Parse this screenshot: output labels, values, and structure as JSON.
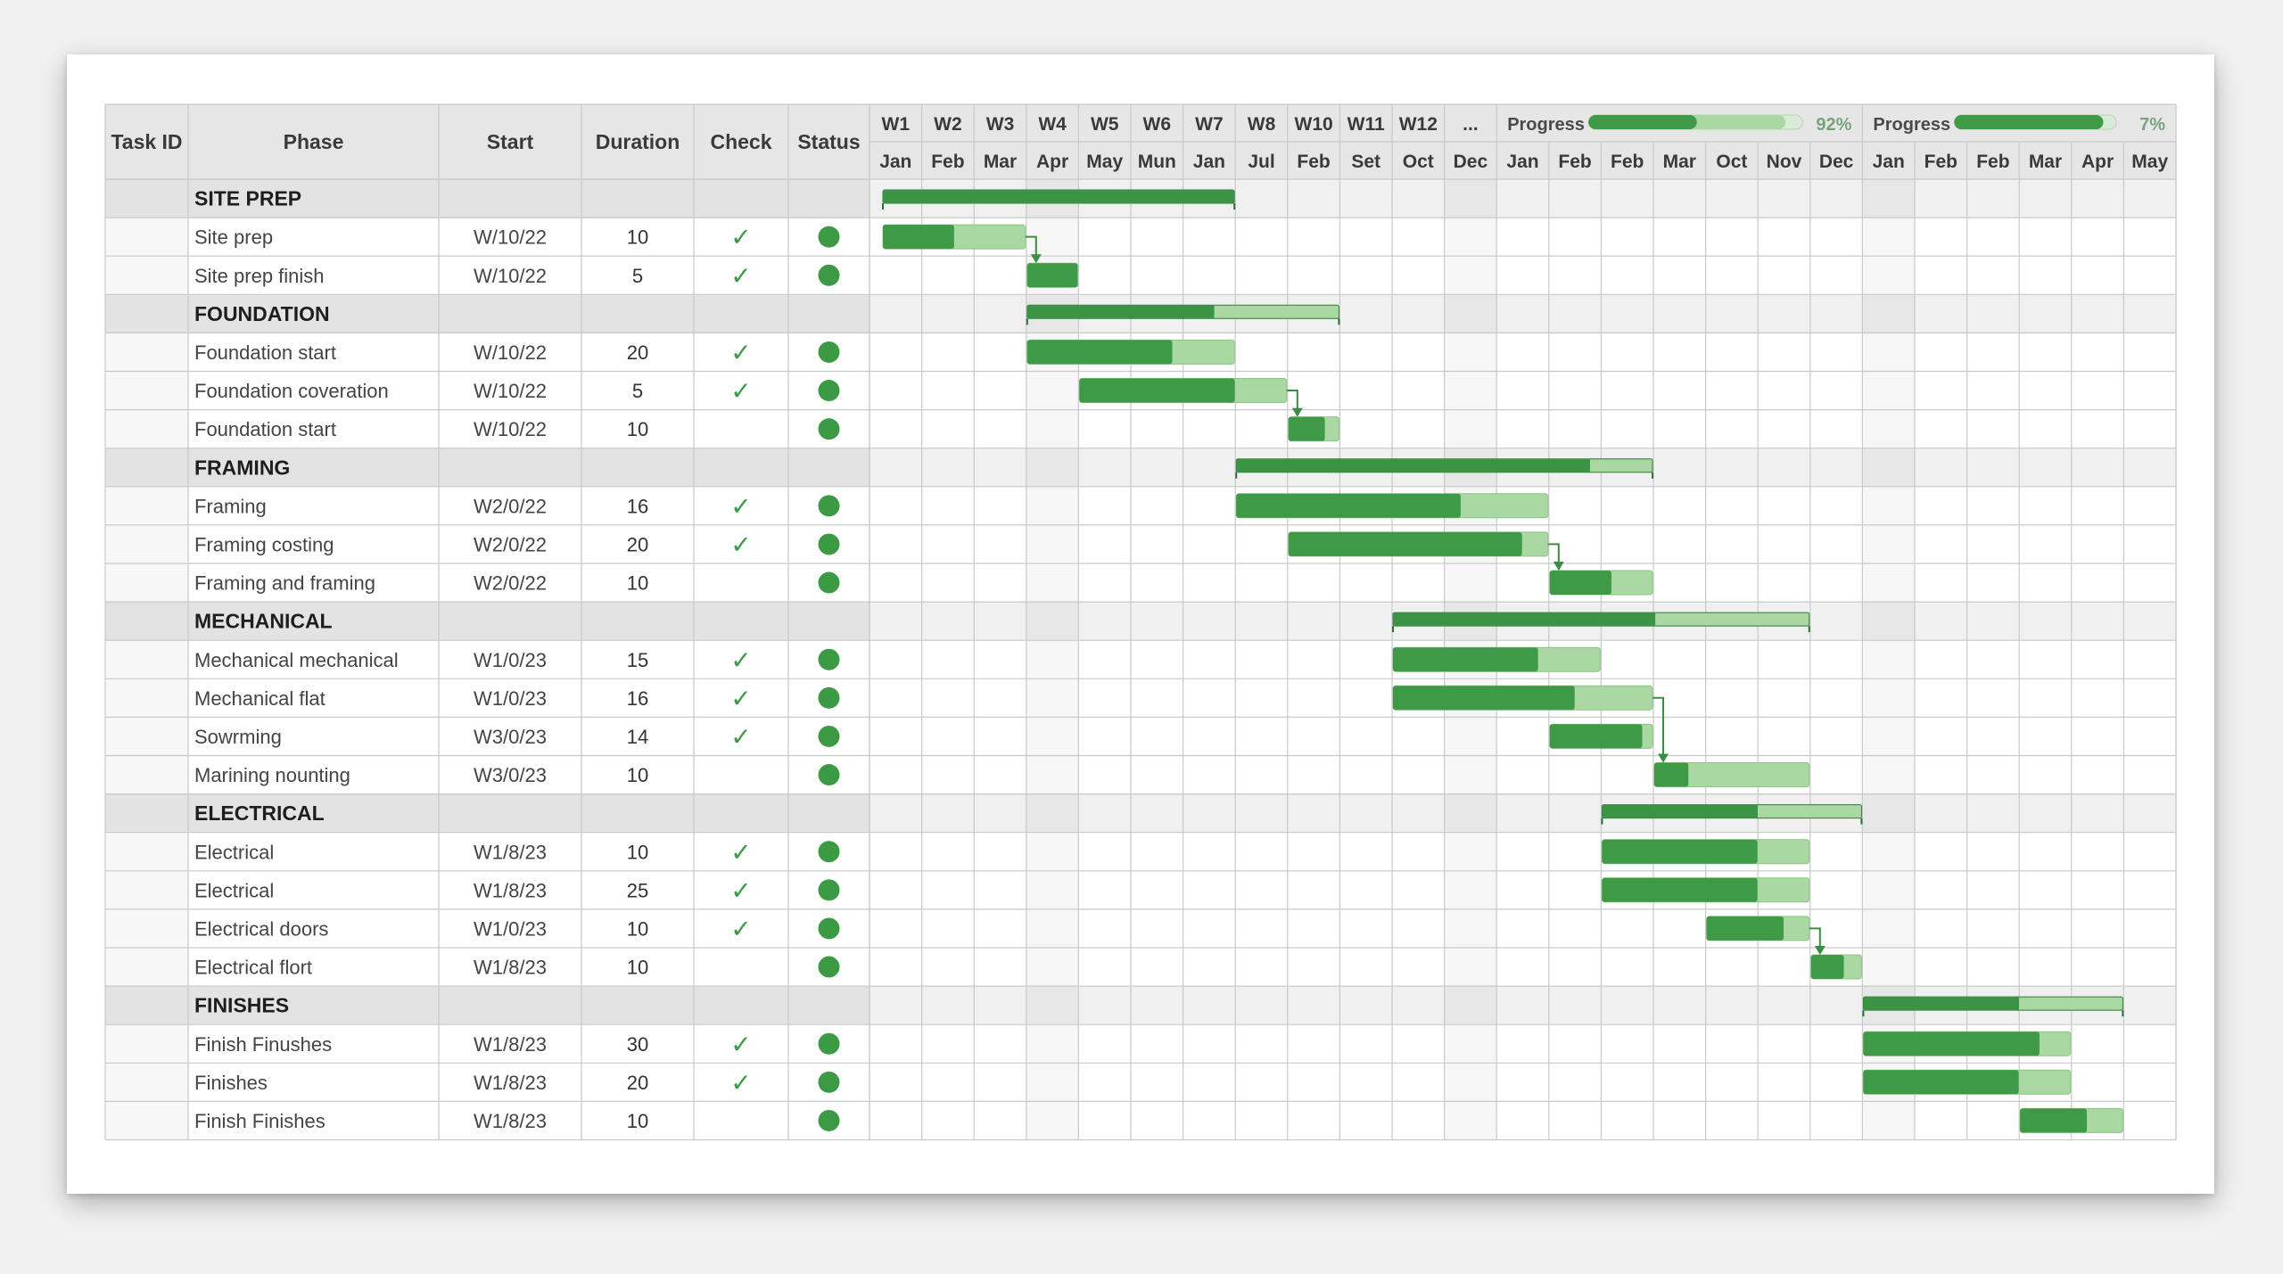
{
  "columns": {
    "task_id": "Task ID",
    "phase": "Phase",
    "start": "Start",
    "duration": "Duration",
    "check": "Check",
    "status": "Status"
  },
  "weeks": [
    "W1",
    "W2",
    "W3",
    "W4",
    "W5",
    "W6",
    "W7",
    "W8",
    "W10",
    "W11",
    "W12",
    "..."
  ],
  "months": [
    "Jan",
    "Feb",
    "Mar",
    "Apr",
    "May",
    "Mun",
    "Jan",
    "Jul",
    "Feb",
    "Set",
    "Oct",
    "Dec",
    "Jan",
    "Feb",
    "Feb",
    "Mar",
    "Oct",
    "Nov",
    "Dec",
    "Jan",
    "Feb",
    "Feb",
    "Mar",
    "Apr",
    "May"
  ],
  "progress": [
    {
      "label": "Progress",
      "value": 0.92,
      "text": "92%"
    },
    {
      "label": "Progress",
      "value": 0.07,
      "text": "7%"
    }
  ],
  "colors": {
    "bar_dark": "#3f9a48",
    "bar_light": "#a9d8a2",
    "summary_dark": "#3b9444",
    "phase_row": "#e3e3e3",
    "status_dot": "#3c9a45",
    "check": "#3c9a45"
  },
  "icons": {
    "check": "✓",
    "status": "status-dot-icon"
  },
  "rows": [
    {
      "type": "phase",
      "name": "SITE PREP",
      "bar": {
        "start": 0,
        "end": 7,
        "done": 1.0
      }
    },
    {
      "type": "task",
      "name": "Site prep",
      "start": "W/10/22",
      "duration": "10",
      "check": true,
      "bar": {
        "start": 0,
        "end": 3,
        "done": 0.5
      }
    },
    {
      "type": "task",
      "name": "Site prep finish",
      "start": "W/10/22",
      "duration": "5",
      "check": true,
      "bar": {
        "start": 3,
        "end": 4,
        "done": 1.0
      }
    },
    {
      "type": "phase",
      "name": "FOUNDATION",
      "bar": {
        "start": 3,
        "end": 9,
        "done": 0.6
      }
    },
    {
      "type": "task",
      "name": "Foundation start",
      "start": "W/10/22",
      "duration": "20",
      "check": true,
      "bar": {
        "start": 3,
        "end": 7,
        "done": 0.7
      }
    },
    {
      "type": "task",
      "name": "Foundation coveration",
      "start": "W/10/22",
      "duration": "5",
      "check": true,
      "bar": {
        "start": 4,
        "end": 8,
        "done": 0.75
      }
    },
    {
      "type": "task",
      "name": "Foundation start",
      "start": "W/10/22",
      "duration": "10",
      "check": false,
      "bar": {
        "start": 8,
        "end": 9,
        "done": 0.72
      }
    },
    {
      "type": "phase",
      "name": "FRAMING",
      "bar": {
        "start": 7,
        "end": 15,
        "done": 0.85
      }
    },
    {
      "type": "task",
      "name": "Framing",
      "start": "W2/0/22",
      "duration": "16",
      "check": true,
      "bar": {
        "start": 7,
        "end": 13,
        "done": 0.72
      }
    },
    {
      "type": "task",
      "name": "Framing costing",
      "start": "W2/0/22",
      "duration": "20",
      "check": true,
      "bar": {
        "start": 8,
        "end": 13,
        "done": 0.9
      }
    },
    {
      "type": "task",
      "name": "Framing and framing",
      "start": "W2/0/22",
      "duration": "10",
      "check": false,
      "bar": {
        "start": 13,
        "end": 15,
        "done": 0.6
      }
    },
    {
      "type": "phase",
      "name": "MECHANICAL",
      "bar": {
        "start": 10,
        "end": 18,
        "done": 0.63
      }
    },
    {
      "type": "task",
      "name": "Mechanical mechanical",
      "start": "W1/0/23",
      "duration": "15",
      "check": true,
      "bar": {
        "start": 10,
        "end": 14,
        "done": 0.7
      }
    },
    {
      "type": "task",
      "name": "Mechanical flat",
      "start": "W1/0/23",
      "duration": "16",
      "check": true,
      "bar": {
        "start": 10,
        "end": 15,
        "done": 0.7
      }
    },
    {
      "type": "task",
      "name": "Sowrming",
      "start": "W3/0/23",
      "duration": "14",
      "check": true,
      "bar": {
        "start": 13,
        "end": 15,
        "done": 0.9
      }
    },
    {
      "type": "task",
      "name": "Marining nounting",
      "start": "W3/0/23",
      "duration": "10",
      "check": false,
      "bar": {
        "start": 15,
        "end": 18,
        "done": 0.22
      }
    },
    {
      "type": "phase",
      "name": "ELECTRICAL",
      "bar": {
        "start": 14,
        "end": 19,
        "done": 0.6
      }
    },
    {
      "type": "task",
      "name": "Electrical",
      "start": "W1/8/23",
      "duration": "10",
      "check": true,
      "bar": {
        "start": 14,
        "end": 18,
        "done": 0.75
      }
    },
    {
      "type": "task",
      "name": "Electrical",
      "start": "W1/8/23",
      "duration": "25",
      "check": true,
      "bar": {
        "start": 14,
        "end": 18,
        "done": 0.75
      }
    },
    {
      "type": "task",
      "name": "Electrical doors",
      "start": "W1/0/23",
      "duration": "10",
      "check": true,
      "bar": {
        "start": 16,
        "end": 18,
        "done": 0.75
      }
    },
    {
      "type": "task",
      "name": "Electrical flort",
      "start": "W1/8/23",
      "duration": "10",
      "check": false,
      "bar": {
        "start": 18,
        "end": 19,
        "done": 0.65
      }
    },
    {
      "type": "phase",
      "name": "FINISHES",
      "bar": {
        "start": 19,
        "end": 24,
        "done": 0.6
      }
    },
    {
      "type": "task",
      "name": "Finish Finushes",
      "start": "W1/8/23",
      "duration": "30",
      "check": true,
      "bar": {
        "start": 19,
        "end": 23,
        "done": 0.85
      }
    },
    {
      "type": "task",
      "name": "Finishes",
      "start": "W1/8/23",
      "duration": "20",
      "check": true,
      "bar": {
        "start": 19,
        "end": 23,
        "done": 0.75
      }
    },
    {
      "type": "task",
      "name": "Finish Finishes",
      "start": "W1/8/23",
      "duration": "10",
      "check": false,
      "bar": {
        "start": 22,
        "end": 24,
        "done": 0.65
      }
    }
  ],
  "links": [
    {
      "from": 1,
      "to": 2
    },
    {
      "from": 5,
      "to": 6
    },
    {
      "from": 9,
      "to": 10
    },
    {
      "from": 13,
      "to": 15
    },
    {
      "from": 19,
      "to": 20
    }
  ]
}
